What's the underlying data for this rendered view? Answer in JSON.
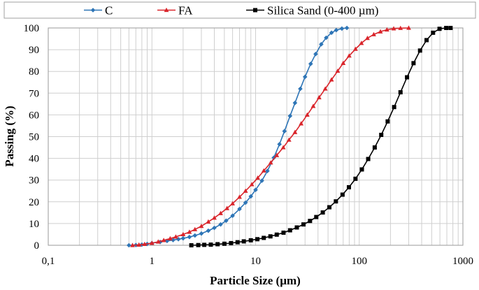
{
  "chart_data": {
    "type": "line",
    "xlabel": "Particle Size (µm)",
    "ylabel": "Passing (%)",
    "xscale": "log",
    "xlim": [
      0.1,
      1000
    ],
    "ylim": [
      0,
      100
    ],
    "x_tick_labels": [
      "0,1",
      "1",
      "10",
      "100",
      "1000"
    ],
    "y_tick_labels": [
      "0",
      "10",
      "20",
      "30",
      "40",
      "50",
      "60",
      "70",
      "80",
      "90",
      "100"
    ],
    "grid": "on",
    "legend_position": "top",
    "series": [
      {
        "name": "C",
        "color": "#2E75B6",
        "marker": "diamond",
        "points": [
          [
            0.6,
            0
          ],
          [
            0.7,
            0.1
          ],
          [
            0.8,
            0.3
          ],
          [
            0.9,
            0.6
          ],
          [
            1.0,
            1.0
          ],
          [
            1.2,
            1.5
          ],
          [
            1.4,
            2.0
          ],
          [
            1.6,
            2.4
          ],
          [
            1.8,
            2.8
          ],
          [
            2.0,
            3.2
          ],
          [
            2.3,
            3.8
          ],
          [
            2.6,
            4.5
          ],
          [
            3.0,
            5.4
          ],
          [
            3.5,
            6.7
          ],
          [
            4.0,
            8.0
          ],
          [
            4.6,
            9.6
          ],
          [
            5.2,
            11.3
          ],
          [
            6.0,
            13.6
          ],
          [
            7.0,
            16.7
          ],
          [
            8.0,
            19.6
          ],
          [
            9.0,
            22.5
          ],
          [
            10.0,
            25.5
          ],
          [
            11.5,
            29.7
          ],
          [
            13.0,
            34.2
          ],
          [
            15.0,
            40.3
          ],
          [
            17.0,
            46.5
          ],
          [
            19.0,
            52.5
          ],
          [
            21.5,
            59.5
          ],
          [
            24.0,
            65.5
          ],
          [
            27.0,
            72.0
          ],
          [
            30.0,
            77.5
          ],
          [
            34.0,
            83.5
          ],
          [
            38.0,
            88.0
          ],
          [
            43.0,
            92.5
          ],
          [
            48.0,
            95.5
          ],
          [
            54.0,
            97.8
          ],
          [
            60.0,
            99.0
          ],
          [
            68.0,
            99.7
          ],
          [
            76.0,
            100
          ]
        ]
      },
      {
        "name": "FA",
        "color": "#D9252B",
        "marker": "triangle",
        "points": [
          [
            0.65,
            0
          ],
          [
            0.75,
            0.2
          ],
          [
            0.85,
            0.5
          ],
          [
            1.0,
            1.0
          ],
          [
            1.15,
            1.6
          ],
          [
            1.3,
            2.3
          ],
          [
            1.5,
            3.1
          ],
          [
            1.7,
            3.9
          ],
          [
            2.0,
            5.0
          ],
          [
            2.3,
            6.1
          ],
          [
            2.6,
            7.3
          ],
          [
            3.0,
            8.8
          ],
          [
            3.5,
            10.8
          ],
          [
            4.0,
            12.6
          ],
          [
            4.6,
            14.7
          ],
          [
            5.3,
            17.0
          ],
          [
            6.0,
            19.2
          ],
          [
            7.0,
            22.2
          ],
          [
            8.0,
            25.0
          ],
          [
            9.2,
            28.0
          ],
          [
            10.5,
            31.0
          ],
          [
            12.0,
            34.3
          ],
          [
            14.0,
            38.0
          ],
          [
            16.0,
            41.4
          ],
          [
            18.5,
            45.0
          ],
          [
            21.0,
            48.5
          ],
          [
            24.0,
            52.0
          ],
          [
            27.5,
            56.0
          ],
          [
            31.5,
            60.0
          ],
          [
            36.0,
            64.0
          ],
          [
            41.0,
            68.0
          ],
          [
            47.0,
            72.0
          ],
          [
            54.0,
            76.2
          ],
          [
            62.0,
            80.2
          ],
          [
            70.0,
            83.8
          ],
          [
            80.0,
            87.2
          ],
          [
            92.0,
            90.3
          ],
          [
            105.0,
            93.0
          ],
          [
            120.0,
            95.3
          ],
          [
            138.0,
            97.0
          ],
          [
            160.0,
            98.3
          ],
          [
            185.0,
            99.2
          ],
          [
            215.0,
            99.7
          ],
          [
            250.0,
            99.9
          ],
          [
            300.0,
            100
          ]
        ]
      },
      {
        "name": "Silica Sand (0-400 µm)",
        "color": "#000000",
        "marker": "square",
        "points": [
          [
            2.4,
            0
          ],
          [
            2.8,
            0.1
          ],
          [
            3.2,
            0.2
          ],
          [
            3.7,
            0.3
          ],
          [
            4.3,
            0.5
          ],
          [
            5.0,
            0.7
          ],
          [
            5.8,
            1.0
          ],
          [
            6.7,
            1.4
          ],
          [
            7.7,
            1.8
          ],
          [
            9.0,
            2.3
          ],
          [
            10.4,
            2.8
          ],
          [
            12.0,
            3.4
          ],
          [
            13.9,
            4.1
          ],
          [
            16.0,
            4.9
          ],
          [
            18.6,
            5.8
          ],
          [
            21.5,
            6.9
          ],
          [
            25.0,
            8.2
          ],
          [
            29.0,
            9.6
          ],
          [
            33.5,
            11.2
          ],
          [
            38.5,
            13.0
          ],
          [
            44.5,
            15.1
          ],
          [
            51.5,
            17.5
          ],
          [
            59.5,
            20.2
          ],
          [
            69.0,
            23.3
          ],
          [
            79.5,
            26.7
          ],
          [
            92.0,
            30.6
          ],
          [
            106.0,
            34.9
          ],
          [
            122.0,
            39.7
          ],
          [
            141.0,
            45.0
          ],
          [
            163.0,
            50.8
          ],
          [
            188.0,
            57.0
          ],
          [
            217.0,
            63.6
          ],
          [
            250.0,
            70.4
          ],
          [
            289.0,
            77.3
          ],
          [
            334.0,
            83.8
          ],
          [
            386.0,
            89.6
          ],
          [
            446.0,
            94.4
          ],
          [
            515.0,
            97.8
          ],
          [
            595.0,
            99.6
          ],
          [
            690.0,
            100
          ],
          [
            760.0,
            100
          ]
        ]
      }
    ]
  }
}
